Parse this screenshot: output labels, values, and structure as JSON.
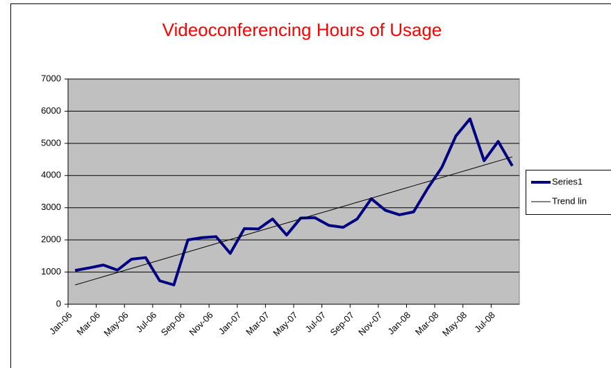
{
  "chart_data": {
    "type": "line",
    "title": "Videoconferencing Hours of Usage",
    "categories": [
      "Jan-06",
      null,
      "Mar-06",
      null,
      "May-06",
      null,
      "Jul-06",
      null,
      "Sep-06",
      null,
      "Nov-06",
      null,
      "Jan-07",
      null,
      "Mar-07",
      null,
      "May-07",
      null,
      "Jul-07",
      null,
      "Sep-07",
      null,
      "Nov-07",
      null,
      "Jan-08",
      null,
      "Mar-08",
      null,
      "May-08",
      null,
      "Jul-08",
      null
    ],
    "series": [
      {
        "name": "Series1",
        "color": "#000080",
        "values": [
          1050,
          1130,
          1220,
          1060,
          1400,
          1450,
          730,
          600,
          2000,
          2070,
          2100,
          1580,
          2350,
          2340,
          2650,
          2150,
          2680,
          2690,
          2450,
          2390,
          2650,
          3280,
          2920,
          2780,
          2870,
          3600,
          4250,
          5230,
          5760,
          4460,
          5060,
          4300
        ]
      },
      {
        "name": "Trend lin",
        "color": "#000000",
        "values": [
          600,
          728,
          857,
          985,
          1114,
          1242,
          1370,
          1499,
          1627,
          1756,
          1884,
          2012,
          2141,
          2269,
          2398,
          2526,
          2654,
          2783,
          2911,
          3040,
          3168,
          3296,
          3425,
          3553,
          3682,
          3810,
          3938,
          4067,
          4195,
          4324,
          4452,
          4580
        ]
      }
    ],
    "ylim": [
      0,
      7000
    ],
    "yticks": [
      0,
      1000,
      2000,
      3000,
      4000,
      5000,
      6000,
      7000
    ],
    "grid": true,
    "plot_background": "#c0c0c0",
    "legend": "right"
  }
}
